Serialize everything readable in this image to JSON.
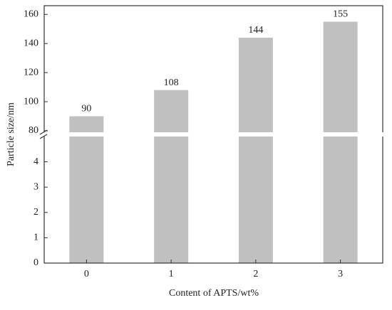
{
  "chart_data": {
    "type": "bar",
    "xlabel": "Content of APTS/wt%",
    "ylabel": "Particle size/nm",
    "categories": [
      "0",
      "1",
      "2",
      "3"
    ],
    "values": [
      90,
      108,
      144,
      155
    ],
    "color": "#c0c0c0",
    "ylim": [
      0,
      5
    ],
    "yticks": [
      0,
      1,
      2,
      3,
      4
    ],
    "ylim_upper": [
      79,
      166
    ],
    "yticks_upper": [
      80,
      100,
      120,
      140,
      160
    ]
  }
}
